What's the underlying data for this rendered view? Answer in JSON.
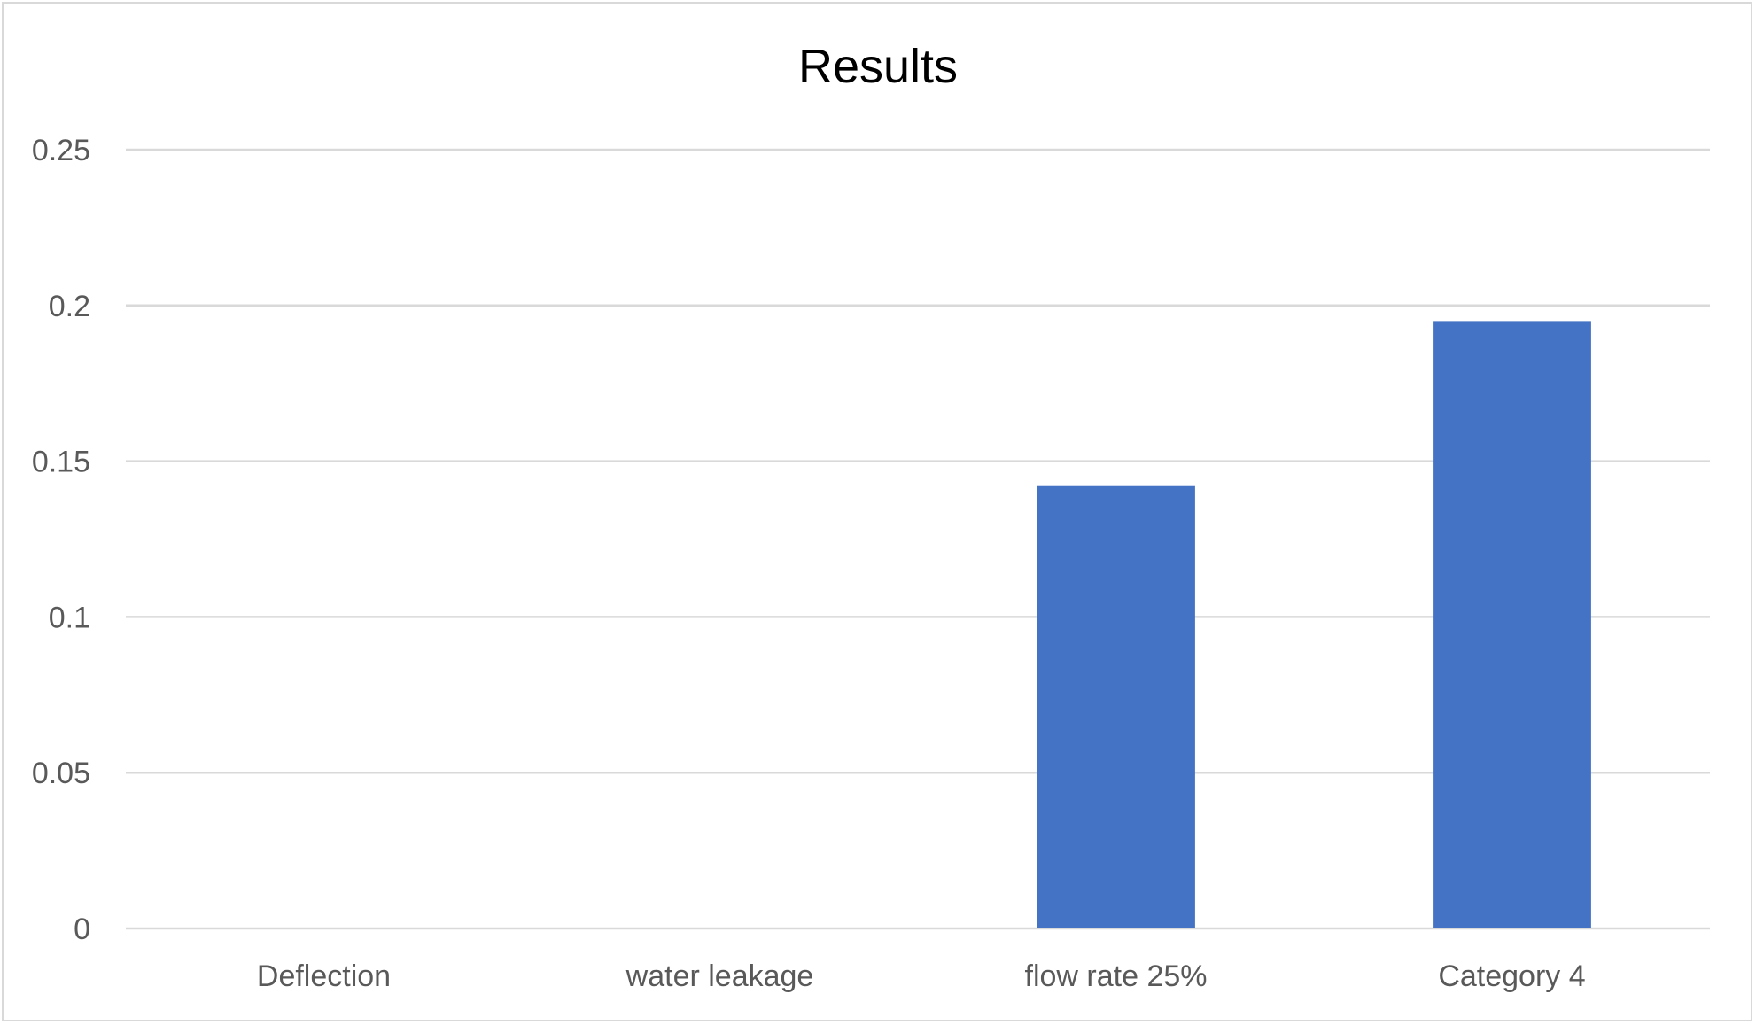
{
  "chart_data": {
    "type": "bar",
    "title": "Results",
    "categories": [
      "Deflection",
      "water leakage",
      "flow rate 25%",
      "Category 4"
    ],
    "values": [
      0,
      0,
      0.142,
      0.195
    ],
    "ylim": [
      0,
      0.25
    ],
    "yticks": [
      {
        "value": 0,
        "label": "0"
      },
      {
        "value": 0.05,
        "label": "0.05"
      },
      {
        "value": 0.1,
        "label": "0.1"
      },
      {
        "value": 0.15,
        "label": "0.15"
      },
      {
        "value": 0.2,
        "label": "0.2"
      },
      {
        "value": 0.25,
        "label": "0.25"
      }
    ],
    "xlabel": "",
    "ylabel": "",
    "grid": true,
    "legend": "none",
    "bar_color": "#4472C4",
    "gridline_color": "#d9d9d9"
  }
}
